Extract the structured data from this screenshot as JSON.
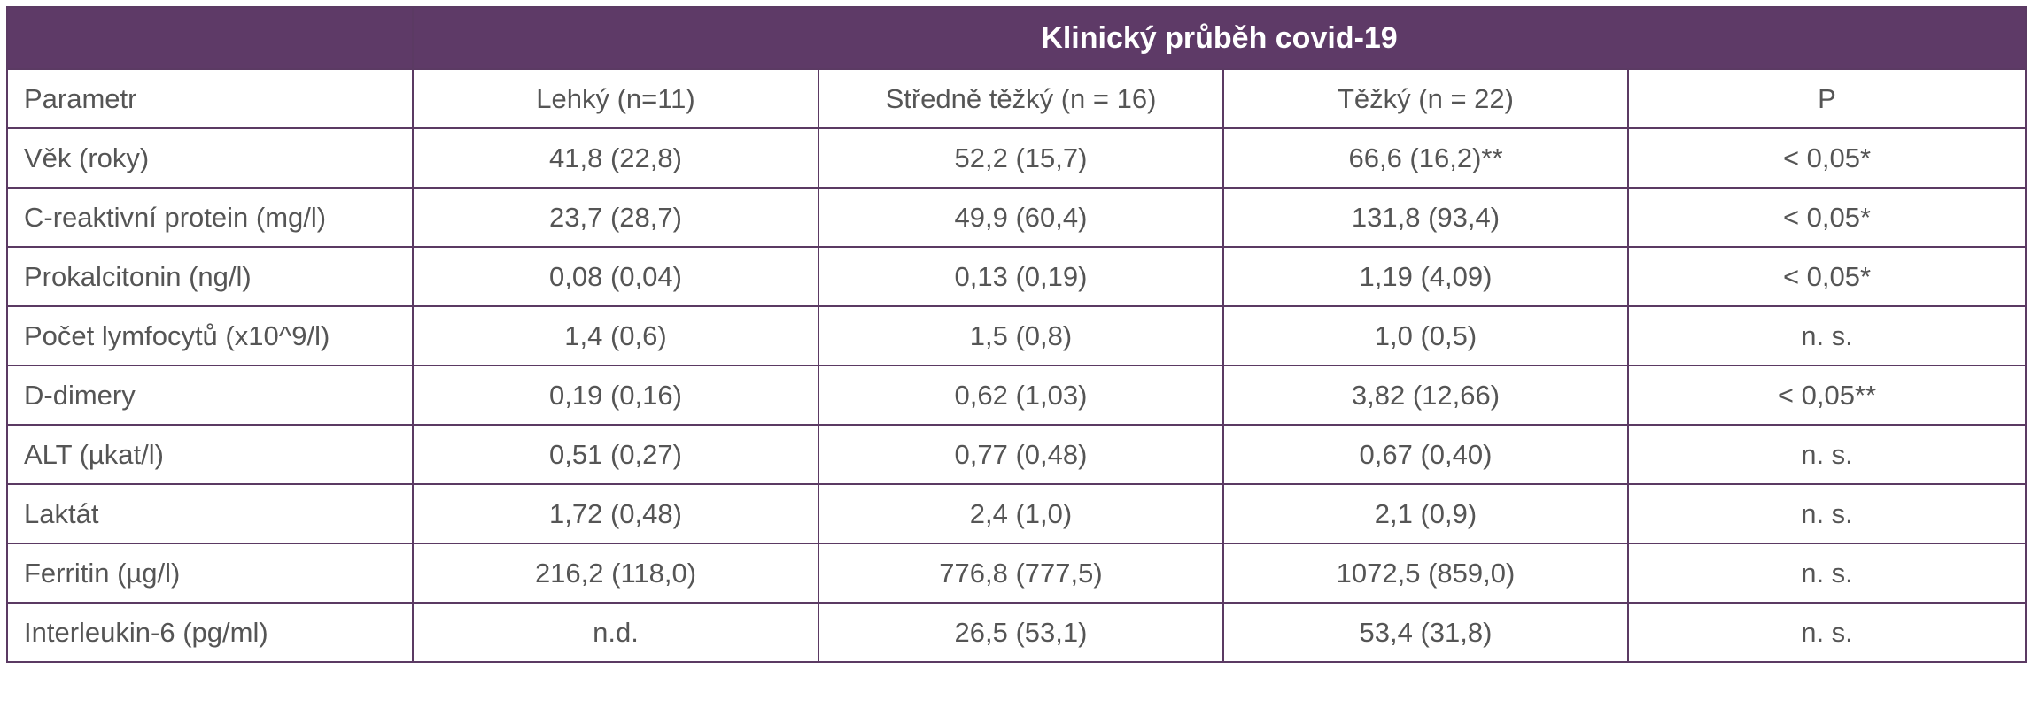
{
  "table": {
    "title": "Klinický průběh covid-19",
    "headers": [
      "Parametr",
      "Lehký (n=11)",
      "Středně těžký (n = 16)",
      "Těžký (n = 22)",
      "P"
    ],
    "rows": [
      {
        "label": "Věk (roky)",
        "lehky": "41,8 (22,8)",
        "stredne": "52,2 (15,7)",
        "tezky": "66,6 (16,2)**",
        "p": "< 0,05*"
      },
      {
        "label": "C-reaktivní protein (mg/l)",
        "lehky": "23,7 (28,7)",
        "stredne": "49,9 (60,4)",
        "tezky": "131,8 (93,4)",
        "p": "< 0,05*"
      },
      {
        "label": "Prokalcitonin (ng/l)",
        "lehky": "0,08 (0,04)",
        "stredne": "0,13 (0,19)",
        "tezky": "1,19 (4,09)",
        "p": "< 0,05*"
      },
      {
        "label": "Počet lymfocytů (x10^9/l)",
        "lehky": "1,4 (0,6)",
        "stredne": "1,5 (0,8)",
        "tezky": "1,0 (0,5)",
        "p": "n. s."
      },
      {
        "label": "D-dimery",
        "lehky": "0,19 (0,16)",
        "stredne": "0,62 (1,03)",
        "tezky": "3,82 (12,66)",
        "p": "< 0,05**"
      },
      {
        "label": "ALT (µkat/l)",
        "lehky": "0,51 (0,27)",
        "stredne": "0,77 (0,48)",
        "tezky": "0,67 (0,40)",
        "p": "n. s."
      },
      {
        "label": "Laktát",
        "lehky": "1,72 (0,48)",
        "stredne": "2,4 (1,0)",
        "tezky": "2,1 (0,9)",
        "p": "n. s."
      },
      {
        "label": "Ferritin (µg/l)",
        "lehky": "216,2 (118,0)",
        "stredne": "776,8 (777,5)",
        "tezky": "1072,5 (859,0)",
        "p": "n. s."
      },
      {
        "label": "Interleukin-6 (pg/ml)",
        "lehky": "n.d.",
        "stredne": "26,5 (53,1)",
        "tezky": "53,4 (31,8)",
        "p": "n. s."
      }
    ]
  },
  "colors": {
    "header_bg": "#5e3a67",
    "border": "#5b3a63",
    "header_text": "#ffffff",
    "body_text": "#555555"
  }
}
